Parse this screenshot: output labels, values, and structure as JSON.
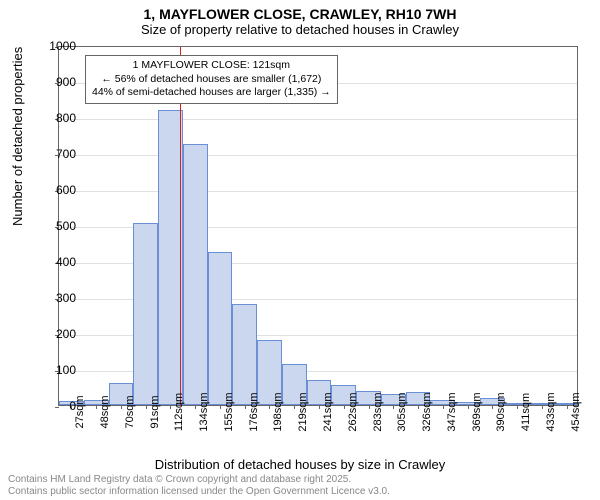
{
  "titles": {
    "main": "1, MAYFLOWER CLOSE, CRAWLEY, RH10 7WH",
    "sub": "Size of property relative to detached houses in Crawley"
  },
  "axes": {
    "ylabel": "Number of detached properties",
    "xlabel": "Distribution of detached houses by size in Crawley",
    "ylim_max": 1000,
    "ytick_step": 100,
    "yticks": [
      0,
      100,
      200,
      300,
      400,
      500,
      600,
      700,
      800,
      900,
      1000
    ],
    "xticks": [
      "27sqm",
      "48sqm",
      "70sqm",
      "91sqm",
      "112sqm",
      "134sqm",
      "155sqm",
      "176sqm",
      "198sqm",
      "219sqm",
      "241sqm",
      "262sqm",
      "283sqm",
      "305sqm",
      "326sqm",
      "347sqm",
      "369sqm",
      "390sqm",
      "411sqm",
      "433sqm",
      "454sqm"
    ]
  },
  "histogram": {
    "type": "histogram",
    "bar_color": "#cad7ef",
    "bar_border": "#6b8fd4",
    "values": [
      10,
      15,
      60,
      505,
      820,
      725,
      425,
      280,
      180,
      115,
      70,
      55,
      40,
      30,
      35,
      15,
      8,
      20,
      5,
      3,
      2
    ]
  },
  "reference": {
    "value_sqm": 121,
    "line_color": "#d62020",
    "annotation_lines": [
      "1 MAYFLOWER CLOSE: 121sqm",
      "← 56% of detached houses are smaller (1,672)",
      "44% of semi-detached houses are larger (1,335) →"
    ]
  },
  "styling": {
    "grid_color": "#e0e0e0",
    "axis_color": "#666666",
    "background_color": "#ffffff",
    "title_fontsize": 14,
    "label_fontsize": 13,
    "tick_fontsize": 12
  },
  "footer": {
    "line1": "Contains HM Land Registry data © Crown copyright and database right 2025.",
    "line2": "Contains public sector information licensed under the Open Government Licence v3.0."
  }
}
